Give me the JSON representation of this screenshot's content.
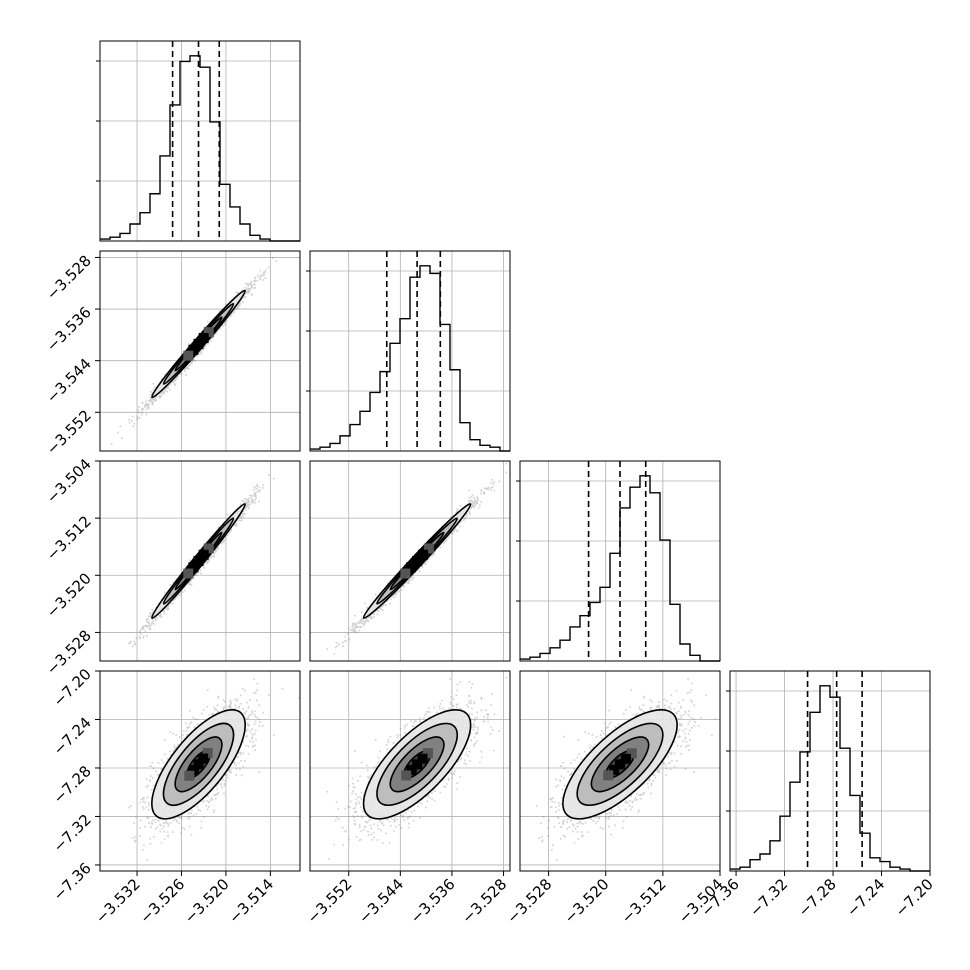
{
  "chart_data": {
    "type": "corner",
    "title": "",
    "grid": true,
    "parameters": [
      {
        "range": [
          -3.537,
          -3.51
        ],
        "ticks": [
          -3.532,
          -3.526,
          -3.52,
          -3.514
        ],
        "tick_labels": [
          "−3.532",
          "−3.526",
          "−3.520",
          "−3.514"
        ],
        "hist_edges_start": -3.537,
        "hist_bin_width": 0.00135,
        "hist_counts": [
          1,
          2,
          4,
          9,
          15,
          25,
          45,
          72,
          95,
          98,
          92,
          63,
          30,
          18,
          9,
          3,
          1,
          0,
          0,
          0
        ],
        "quantiles": [
          -3.5272,
          -3.5237,
          -3.5209
        ]
      },
      {
        "range": [
          -3.558,
          -3.527
        ],
        "ticks": [
          -3.552,
          -3.544,
          -3.536,
          -3.528
        ],
        "tick_labels": [
          "−3.552",
          "−3.544",
          "−3.536",
          "−3.528"
        ],
        "hist_edges_start": -3.558,
        "hist_bin_width": 0.00155,
        "hist_counts": [
          1,
          2,
          4,
          8,
          14,
          21,
          31,
          42,
          57,
          70,
          92,
          98,
          94,
          67,
          43,
          15,
          6,
          3,
          2,
          0
        ],
        "quantiles": [
          -3.5461,
          -3.5414,
          -3.5378
        ]
      },
      {
        "range": [
          -3.532,
          -3.504
        ],
        "ticks": [
          -3.528,
          -3.52,
          -3.512,
          -3.504
        ],
        "tick_labels": [
          "−3.528",
          "−3.520",
          "−3.512",
          "−3.504"
        ],
        "hist_edges_start": -3.532,
        "hist_bin_width": 0.0014,
        "hist_counts": [
          1,
          2,
          4,
          7,
          11,
          18,
          24,
          31,
          39,
          57,
          81,
          92,
          98,
          89,
          64,
          30,
          9,
          3,
          0,
          0
        ],
        "quantiles": [
          -3.5224,
          -3.518,
          -3.5144
        ]
      },
      {
        "range": [
          -7.365,
          -7.2
        ],
        "ticks": [
          -7.36,
          -7.32,
          -7.28,
          -7.24,
          -7.2
        ],
        "tick_labels": [
          "−7.36",
          "−7.32",
          "−7.28",
          "−7.24",
          "−7.20"
        ],
        "hist_edges_start": -7.365,
        "hist_bin_width": 0.00825,
        "hist_counts": [
          1,
          2,
          6,
          9,
          16,
          29,
          47,
          63,
          84,
          98,
          92,
          65,
          40,
          20,
          7,
          5,
          2,
          1,
          0,
          0
        ],
        "quantiles": [
          -7.301,
          -7.277,
          -7.256
        ]
      }
    ],
    "correlations": [
      {
        "xi": 0,
        "yi": 1,
        "rho": 0.99
      },
      {
        "xi": 0,
        "yi": 2,
        "rho": 0.99
      },
      {
        "xi": 1,
        "yi": 2,
        "rho": 0.99
      },
      {
        "xi": 0,
        "yi": 3,
        "rho": 0.72
      },
      {
        "xi": 1,
        "yi": 3,
        "rho": 0.72
      },
      {
        "xi": 2,
        "yi": 3,
        "rho": 0.72
      }
    ],
    "colors": {
      "line": "#000000",
      "grid": "#b0b0b0",
      "points": "#777777",
      "contour_fills": [
        "#ffffff",
        "#e6e6e6",
        "#b8b8b8",
        "#7a7a7a",
        "#3a3a3a",
        "#000000"
      ]
    },
    "sample_count": 2500
  }
}
